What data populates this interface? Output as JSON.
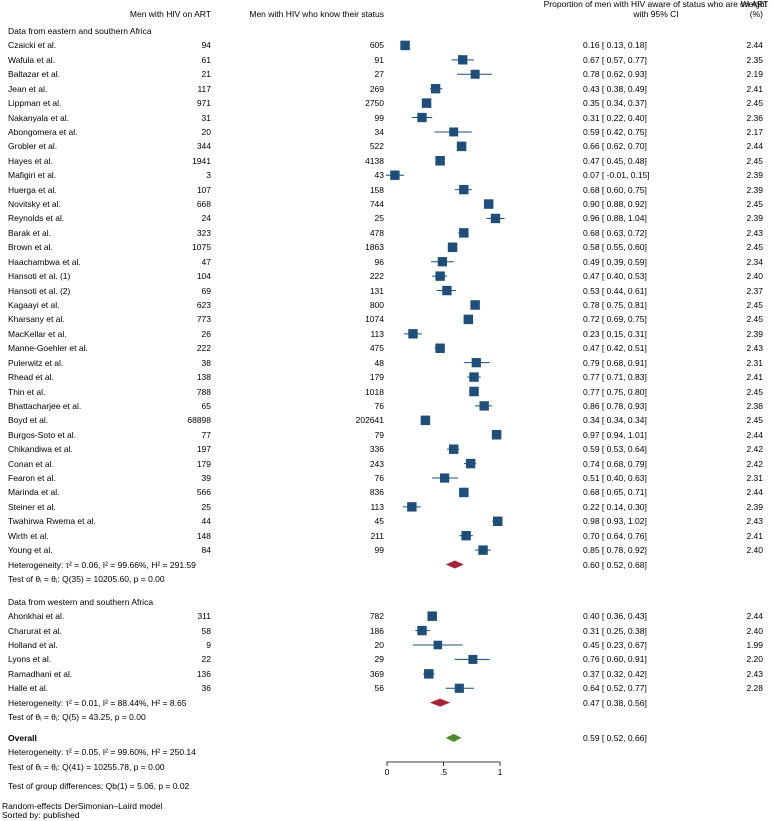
{
  "chart_data": {
    "type": "forest",
    "headers": {
      "on_art": "Men with HIV on ART",
      "know_status": "Men with HIV who know their status",
      "estimate": "Proportion of men with HIV aware of status who are on ART",
      "estimate_ci": "with 95% CI",
      "weight": "Weight",
      "weight_unit": "(%)"
    },
    "groups": [
      {
        "title": "Data from eastern and southern Africa",
        "studies": [
          {
            "name": "Czaicki et al.",
            "on_art": "94",
            "know": "605",
            "est": 0.16,
            "lo": 0.13,
            "hi": 0.18,
            "ci_text": "0.16 [  0.13,  0.18]",
            "weight": "2.44"
          },
          {
            "name": "Wafula et al.",
            "on_art": "61",
            "know": "91",
            "est": 0.67,
            "lo": 0.57,
            "hi": 0.77,
            "ci_text": "0.67 [  0.57,  0.77]",
            "weight": "2.35"
          },
          {
            "name": "Baltazar et al.",
            "on_art": "21",
            "know": "27",
            "est": 0.78,
            "lo": 0.62,
            "hi": 0.93,
            "ci_text": "0.78 [  0.62,  0.93]",
            "weight": "2.19"
          },
          {
            "name": "Jean et al.",
            "on_art": "117",
            "know": "269",
            "est": 0.43,
            "lo": 0.38,
            "hi": 0.49,
            "ci_text": "0.43 [  0.38,  0.49]",
            "weight": "2.41"
          },
          {
            "name": "Lippman et al.",
            "on_art": "971",
            "know": "2750",
            "est": 0.35,
            "lo": 0.34,
            "hi": 0.37,
            "ci_text": "0.35 [  0.34,  0.37]",
            "weight": "2.45"
          },
          {
            "name": "Nakanyala et al.",
            "on_art": "31",
            "know": "99",
            "est": 0.31,
            "lo": 0.22,
            "hi": 0.4,
            "ci_text": "0.31 [  0.22,  0.40]",
            "weight": "2.36"
          },
          {
            "name": "Abongomera et al.",
            "on_art": "20",
            "know": "34",
            "est": 0.59,
            "lo": 0.42,
            "hi": 0.75,
            "ci_text": "0.59 [  0.42,  0.75]",
            "weight": "2.17"
          },
          {
            "name": "Grobler et al.",
            "on_art": "344",
            "know": "522",
            "est": 0.66,
            "lo": 0.62,
            "hi": 0.7,
            "ci_text": "0.66 [  0.62,  0.70]",
            "weight": "2.44"
          },
          {
            "name": "Hayes et al.",
            "on_art": "1941",
            "know": "4138",
            "est": 0.47,
            "lo": 0.45,
            "hi": 0.48,
            "ci_text": "0.47 [  0.45,  0.48]",
            "weight": "2.45"
          },
          {
            "name": "Mafigiri et al.",
            "on_art": "3",
            "know": "43",
            "est": 0.07,
            "lo": -0.01,
            "hi": 0.15,
            "ci_text": "0.07 [ -0.01,  0.15]",
            "weight": "2.39"
          },
          {
            "name": "Huerga et al.",
            "on_art": "107",
            "know": "158",
            "est": 0.68,
            "lo": 0.6,
            "hi": 0.75,
            "ci_text": "0.68 [  0.60,  0.75]",
            "weight": "2.39"
          },
          {
            "name": "Novitsky et al.",
            "on_art": "668",
            "know": "744",
            "est": 0.9,
            "lo": 0.88,
            "hi": 0.92,
            "ci_text": "0.90 [  0.88,  0.92]",
            "weight": "2.45"
          },
          {
            "name": "Reynolds et al.",
            "on_art": "24",
            "know": "25",
            "est": 0.96,
            "lo": 0.88,
            "hi": 1.04,
            "ci_text": "0.96 [  0.88,  1.04]",
            "weight": "2.39"
          },
          {
            "name": "Barak et al.",
            "on_art": "323",
            "know": "478",
            "est": 0.68,
            "lo": 0.63,
            "hi": 0.72,
            "ci_text": "0.68 [  0.63,  0.72]",
            "weight": "2.43"
          },
          {
            "name": "Brown et al.",
            "on_art": "1075",
            "know": "1863",
            "est": 0.58,
            "lo": 0.55,
            "hi": 0.6,
            "ci_text": "0.58 [  0.55,  0.60]",
            "weight": "2.45"
          },
          {
            "name": "Haachambwa et al.",
            "on_art": "47",
            "know": "96",
            "est": 0.49,
            "lo": 0.39,
            "hi": 0.59,
            "ci_text": "0.49 [  0.39,  0.59]",
            "weight": "2.34"
          },
          {
            "name": "Hansoti et al. (1)",
            "on_art": "104",
            "know": "222",
            "est": 0.47,
            "lo": 0.4,
            "hi": 0.53,
            "ci_text": "0.47 [  0.40,  0.53]",
            "weight": "2.40"
          },
          {
            "name": "Hansoti et al. (2)",
            "on_art": "69",
            "know": "131",
            "est": 0.53,
            "lo": 0.44,
            "hi": 0.61,
            "ci_text": "0.53 [  0.44,  0.61]",
            "weight": "2.37"
          },
          {
            "name": "Kagaayi et al.",
            "on_art": "623",
            "know": "800",
            "est": 0.78,
            "lo": 0.75,
            "hi": 0.81,
            "ci_text": "0.78 [  0.75,  0.81]",
            "weight": "2.45"
          },
          {
            "name": "Kharsany et al.",
            "on_art": "773",
            "know": "1074",
            "est": 0.72,
            "lo": 0.69,
            "hi": 0.75,
            "ci_text": "0.72 [  0.69,  0.75]",
            "weight": "2.45"
          },
          {
            "name": "MacKellar et al.",
            "on_art": "26",
            "know": "113",
            "est": 0.23,
            "lo": 0.15,
            "hi": 0.31,
            "ci_text": "0.23 [  0.15,  0.31]",
            "weight": "2.39"
          },
          {
            "name": "Manne-Goehler et al.",
            "on_art": "222",
            "know": "475",
            "est": 0.47,
            "lo": 0.42,
            "hi": 0.51,
            "ci_text": "0.47 [  0.42,  0.51]",
            "weight": "2.43"
          },
          {
            "name": "Pulerwitz et al.",
            "on_art": "38",
            "know": "48",
            "est": 0.79,
            "lo": 0.68,
            "hi": 0.91,
            "ci_text": "0.79 [  0.68,  0.91]",
            "weight": "2.31"
          },
          {
            "name": "Rhead et al.",
            "on_art": "138",
            "know": "179",
            "est": 0.77,
            "lo": 0.71,
            "hi": 0.83,
            "ci_text": "0.77 [  0.71,  0.83]",
            "weight": "2.41"
          },
          {
            "name": "Thin et al.",
            "on_art": "788",
            "know": "1018",
            "est": 0.77,
            "lo": 0.75,
            "hi": 0.8,
            "ci_text": "0.77 [  0.75,  0.80]",
            "weight": "2.45"
          },
          {
            "name": "Bhattacharjee et al.",
            "on_art": "65",
            "know": "76",
            "est": 0.86,
            "lo": 0.78,
            "hi": 0.93,
            "ci_text": "0.86 [  0.78,  0.93]",
            "weight": "2.38"
          },
          {
            "name": "Boyd et al.",
            "on_art": "68898",
            "know": "202641",
            "est": 0.34,
            "lo": 0.34,
            "hi": 0.34,
            "ci_text": "0.34 [  0.34,  0.34]",
            "weight": "2.45"
          },
          {
            "name": "Burgos-Soto et al.",
            "on_art": "77",
            "know": "79",
            "est": 0.97,
            "lo": 0.94,
            "hi": 1.01,
            "ci_text": "0.97 [  0.94,  1.01]",
            "weight": "2.44"
          },
          {
            "name": "Chikandiwa et al.",
            "on_art": "197",
            "know": "336",
            "est": 0.59,
            "lo": 0.53,
            "hi": 0.64,
            "ci_text": "0.59 [  0.53,  0.64]",
            "weight": "2.42"
          },
          {
            "name": "Conan et al.",
            "on_art": "179",
            "know": "243",
            "est": 0.74,
            "lo": 0.68,
            "hi": 0.79,
            "ci_text": "0.74 [  0.68,  0.79]",
            "weight": "2.42"
          },
          {
            "name": "Fearon et al.",
            "on_art": "39",
            "know": "76",
            "est": 0.51,
            "lo": 0.4,
            "hi": 0.63,
            "ci_text": "0.51 [  0.40,  0.63]",
            "weight": "2.31"
          },
          {
            "name": "Marinda et al.",
            "on_art": "566",
            "know": "836",
            "est": 0.68,
            "lo": 0.65,
            "hi": 0.71,
            "ci_text": "0.68 [  0.65,  0.71]",
            "weight": "2.44"
          },
          {
            "name": "Steiner et al.",
            "on_art": "25",
            "know": "113",
            "est": 0.22,
            "lo": 0.14,
            "hi": 0.3,
            "ci_text": "0.22 [  0.14,  0.30]",
            "weight": "2.39"
          },
          {
            "name": "Twahirwa Rwema et al.",
            "on_art": "44",
            "know": "45",
            "est": 0.98,
            "lo": 0.93,
            "hi": 1.02,
            "ci_text": "0.98 [  0.93,  1.02]",
            "weight": "2.43"
          },
          {
            "name": "Wirth et al.",
            "on_art": "148",
            "know": "211",
            "est": 0.7,
            "lo": 0.64,
            "hi": 0.76,
            "ci_text": "0.70 [  0.64,  0.76]",
            "weight": "2.41"
          },
          {
            "name": "Young et al.",
            "on_art": "84",
            "know": "99",
            "est": 0.85,
            "lo": 0.78,
            "hi": 0.92,
            "ci_text": "0.85 [  0.78,  0.92]",
            "weight": "2.40"
          }
        ],
        "summary": {
          "est": 0.6,
          "lo": 0.52,
          "hi": 0.68,
          "ci_text": "0.60 [  0.52,  0.68]"
        },
        "heterogeneity": "Heterogeneity: τ² = 0.06, I² = 99.66%, H² = 291.59",
        "test": "Test of θᵢ = θⱼ: Q(35) = 10205.60, p = 0.00"
      },
      {
        "title": "Data from western and southern Africa",
        "studies": [
          {
            "name": "Ahonkhai et al.",
            "on_art": "311",
            "know": "782",
            "est": 0.4,
            "lo": 0.36,
            "hi": 0.43,
            "ci_text": "0.40 [  0.36,  0.43]",
            "weight": "2.44"
          },
          {
            "name": "Charurat et al.",
            "on_art": "58",
            "know": "186",
            "est": 0.31,
            "lo": 0.25,
            "hi": 0.38,
            "ci_text": "0.31 [  0.25,  0.38]",
            "weight": "2.40"
          },
          {
            "name": "Holland et al.",
            "on_art": "9",
            "know": "20",
            "est": 0.45,
            "lo": 0.23,
            "hi": 0.67,
            "ci_text": "0.45 [  0.23,  0.67]",
            "weight": "1.99"
          },
          {
            "name": "Lyons et al.",
            "on_art": "22",
            "know": "29",
            "est": 0.76,
            "lo": 0.6,
            "hi": 0.91,
            "ci_text": "0.76 [  0.60,  0.91]",
            "weight": "2.20"
          },
          {
            "name": "Ramadhani et al.",
            "on_art": "136",
            "know": "369",
            "est": 0.37,
            "lo": 0.32,
            "hi": 0.42,
            "ci_text": "0.37 [  0.32,  0.42]",
            "weight": "2.43"
          },
          {
            "name": "Halle et al.",
            "on_art": "36",
            "know": "56",
            "est": 0.64,
            "lo": 0.52,
            "hi": 0.77,
            "ci_text": "0.64 [  0.52,  0.77]",
            "weight": "2.28"
          }
        ],
        "summary": {
          "est": 0.47,
          "lo": 0.38,
          "hi": 0.56,
          "ci_text": "0.47 [  0.38,  0.56]"
        },
        "heterogeneity": "Heterogeneity: τ² = 0.01, I² = 88.44%, H² = 8.65",
        "test": "Test of θᵢ = θⱼ: Q(5) = 43.25, p = 0.00"
      }
    ],
    "overall": {
      "label": "Overall",
      "est": 0.59,
      "lo": 0.52,
      "hi": 0.66,
      "ci_text": "0.59 [  0.52,  0.66]",
      "heterogeneity": "Heterogeneity: τ² = 0.05, I² = 99.60%, H² = 250.14",
      "test": "Test of θᵢ = θⱼ: Q(41) = 10255.78, p = 0.00",
      "group_test": "Test of group differences: Qb(1) = 5.06, p = 0.02"
    },
    "xaxis": {
      "range": [
        0,
        1
      ],
      "ticks": [
        {
          "v": 0,
          "label": "0"
        },
        {
          "v": 0.5,
          "label": ".5"
        },
        {
          "v": 1,
          "label": "1"
        }
      ]
    },
    "footnotes": [
      "Random-effects DerSimonian–Laird model",
      "Sorted by: published"
    ]
  },
  "colors": {
    "marker": "#1f4e79",
    "diamond_group": "#a3243b",
    "diamond_overall": "#4e8a2e",
    "text": "#000000"
  }
}
